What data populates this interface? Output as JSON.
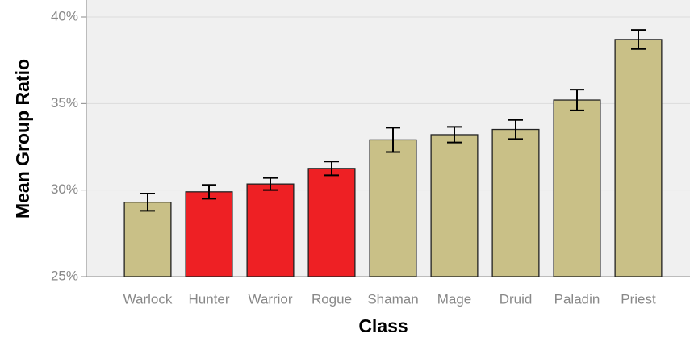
{
  "chart_data": {
    "type": "bar",
    "x_label": "Class",
    "y_label": "Mean Group Ratio",
    "categories": [
      "Warlock",
      "Hunter",
      "Warrior",
      "Rogue",
      "Shaman",
      "Mage",
      "Druid",
      "Paladin",
      "Priest"
    ],
    "values": [
      29.3,
      29.9,
      30.35,
      31.25,
      32.9,
      33.2,
      33.5,
      35.2,
      38.7
    ],
    "errors": [
      0.5,
      0.4,
      0.35,
      0.4,
      0.7,
      0.45,
      0.55,
      0.6,
      0.55
    ],
    "colors": [
      "#c9c087",
      "#ee2024",
      "#ee2024",
      "#ee2024",
      "#c9c087",
      "#c9c087",
      "#c9c087",
      "#c9c087",
      "#c9c087"
    ],
    "ylim": [
      25,
      40
    ],
    "yticks": [
      {
        "value": 25,
        "label": "25%"
      },
      {
        "value": 30,
        "label": "30%"
      },
      {
        "value": 35,
        "label": "35%"
      },
      {
        "value": 40,
        "label": "40%"
      }
    ],
    "grid": true
  }
}
